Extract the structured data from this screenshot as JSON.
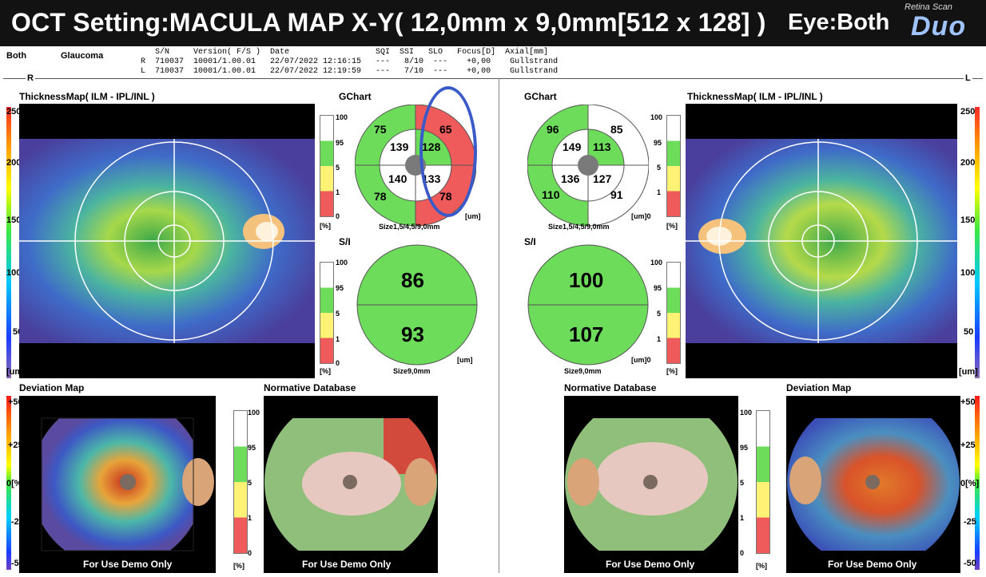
{
  "header": {
    "title": "OCT Setting:MACULA MAP X-Y( 12,0mm x 9,0mm[512 x 128] )",
    "eye": "Eye:Both",
    "brand_small": "Retina Scan",
    "brand_big": "Duo"
  },
  "info": {
    "eye_label": "Both",
    "mode_label": "Glaucoma",
    "col_headers": "   S/N     Version( F/S )  Date                  SQI  SSI   SLO   Focus[D]  Axial[mm]",
    "row_r": "R  710037  10001/1.00.01   22/07/2022 12:16:15   ---   8/10  ---    +0,00    Gullstrand",
    "row_l": "L  710037  10001/1.00.01   22/07/2022 12:19:59   ---   7/10  ---    +0,00    Gullstrand"
  },
  "right_eye": {
    "side_label": "R",
    "thickness_title": "ThicknessMap( ILM - IPL/INL )",
    "gchart_title": "GChart",
    "gchart_values": {
      "outer_tl": "75",
      "outer_tr": "65",
      "inner_tl": "139",
      "inner_tr": "128",
      "inner_bl": "140",
      "inner_br": "133",
      "outer_bl": "78",
      "outer_br": "78"
    },
    "gchart_size": "Size1,5/4,5/9,0mm",
    "si_title": "S/I",
    "si_top": "86",
    "si_bottom": "93",
    "si_size": "Size9,0mm",
    "deviation_title": "Deviation Map",
    "normative_title": "Normative Database",
    "demo_text": "For Use Demo Only"
  },
  "left_eye": {
    "side_label": "L",
    "thickness_title": "ThicknessMap( ILM - IPL/INL )",
    "gchart_title": "GChart",
    "gchart_values": {
      "outer_tl": "96",
      "outer_tr": "85",
      "inner_tl": "149",
      "inner_tr": "113",
      "inner_bl": "136",
      "inner_br": "127",
      "outer_bl": "110",
      "outer_br": "91"
    },
    "gchart_size": "Size1,5/4,5/9,0mm",
    "si_title": "S/I",
    "si_top": "100",
    "si_bottom": "107",
    "si_size": "Size9,0mm",
    "deviation_title": "Deviation Map",
    "normative_title": "Normative Database",
    "demo_text": "For Use Demo Only"
  },
  "thickness_scale": {
    "t250": "250",
    "t200": "200",
    "t150": "150",
    "t100": "100",
    "t50": "50",
    "unit": "[um]"
  },
  "deviation_scale": {
    "p50": "+50",
    "p25": "+25",
    "zero": "0[%]",
    "m25": "-25",
    "m50": "-50"
  },
  "percent_scale": {
    "p100": "100",
    "p95": "95",
    "p5": "5",
    "p1": "1",
    "p0": "0",
    "unit": "[%]"
  },
  "um_label": "[um]",
  "um_label_zero": "[um]0",
  "colors": {
    "green": "#6ddc5a",
    "red": "#ef5a5a",
    "yellow": "#fff275",
    "annotation": "#3a5bc7"
  }
}
